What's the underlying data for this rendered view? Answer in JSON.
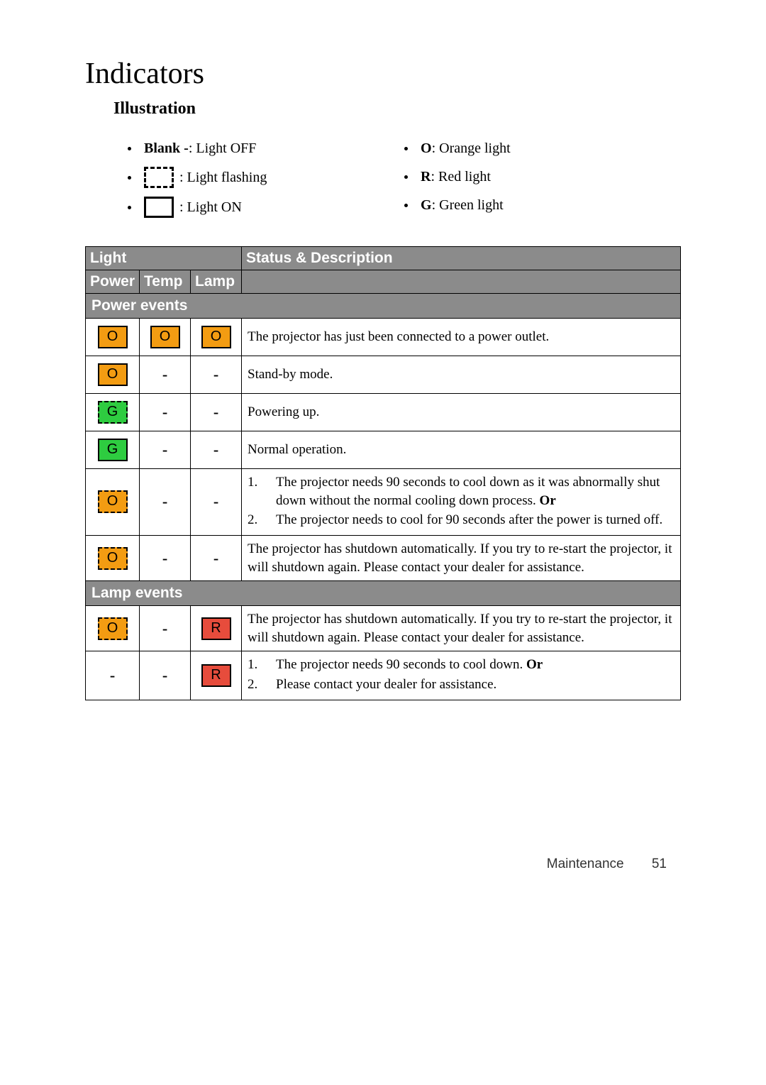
{
  "page": {
    "title": "Indicators",
    "subtitle": "Illustration",
    "footer_label": "Maintenance",
    "footer_page": "51"
  },
  "legend": {
    "left": [
      {
        "bold": "Blank -",
        "text": ": Light OFF",
        "icon": null
      },
      {
        "bold": "",
        "text": ": Light flashing",
        "icon": "dashed"
      },
      {
        "bold": "",
        "text": ": Light ON",
        "icon": "solid"
      }
    ],
    "right": [
      {
        "bold": "O",
        "text": ": Orange light"
      },
      {
        "bold": "R",
        "text": ": Red light"
      },
      {
        "bold": "G",
        "text": ": Green light"
      }
    ]
  },
  "colors": {
    "orange": "#f39c12",
    "green": "#2ecc40",
    "red": "#e74c3c",
    "header_bg": "#8b8b8b",
    "header_fg": "#ffffff"
  },
  "table": {
    "headers": {
      "light": "Light",
      "status": "Status & Description",
      "power": "Power",
      "temp": "Temp",
      "lamp": "Lamp"
    },
    "sections": [
      {
        "title": "Power events",
        "rows": [
          {
            "power": {
              "letter": "O",
              "color": "orange",
              "flashing": false
            },
            "temp": {
              "letter": "O",
              "color": "orange",
              "flashing": false
            },
            "lamp": {
              "letter": "O",
              "color": "orange",
              "flashing": false
            },
            "desc_type": "text",
            "desc": "The projector has just been connected to a power outlet."
          },
          {
            "power": {
              "letter": "O",
              "color": "orange",
              "flashing": false
            },
            "temp": null,
            "lamp": null,
            "desc_type": "text",
            "desc": "Stand-by mode."
          },
          {
            "power": {
              "letter": "G",
              "color": "green",
              "flashing": true
            },
            "temp": null,
            "lamp": null,
            "desc_type": "text",
            "desc": "Powering up."
          },
          {
            "power": {
              "letter": "G",
              "color": "green",
              "flashing": false
            },
            "temp": null,
            "lamp": null,
            "desc_type": "text",
            "desc": "Normal operation."
          },
          {
            "power": {
              "letter": "O",
              "color": "orange",
              "flashing": true
            },
            "temp": null,
            "lamp": null,
            "desc_type": "list",
            "items": [
              {
                "num": "1.",
                "html": "The projector needs 90 seconds to cool down as it was abnormally shut down without the normal cooling down process. <b>Or</b>"
              },
              {
                "num": "2.",
                "html": "The projector needs to cool for 90 seconds after the power is turned off."
              }
            ]
          },
          {
            "power": {
              "letter": "O",
              "color": "orange",
              "flashing": true
            },
            "temp": null,
            "lamp": null,
            "desc_type": "text",
            "desc": "The projector has shutdown automatically. If you try to re-start the projector, it will shutdown again. Please contact your dealer for assistance."
          }
        ]
      },
      {
        "title": "Lamp events",
        "rows": [
          {
            "power": {
              "letter": "O",
              "color": "orange",
              "flashing": true
            },
            "temp": null,
            "lamp": {
              "letter": "R",
              "color": "red",
              "flashing": false
            },
            "desc_type": "text",
            "desc": "The projector has shutdown automatically. If you try to re-start the projector, it will shutdown again. Please contact your dealer for assistance."
          },
          {
            "power": null,
            "temp": null,
            "lamp": {
              "letter": "R",
              "color": "red",
              "flashing": false
            },
            "desc_type": "list",
            "items": [
              {
                "num": "1.",
                "html": "The projector needs 90 seconds to cool down. <b>Or</b>"
              },
              {
                "num": "2.",
                "html": "Please contact your dealer for assistance."
              }
            ]
          }
        ]
      }
    ]
  }
}
